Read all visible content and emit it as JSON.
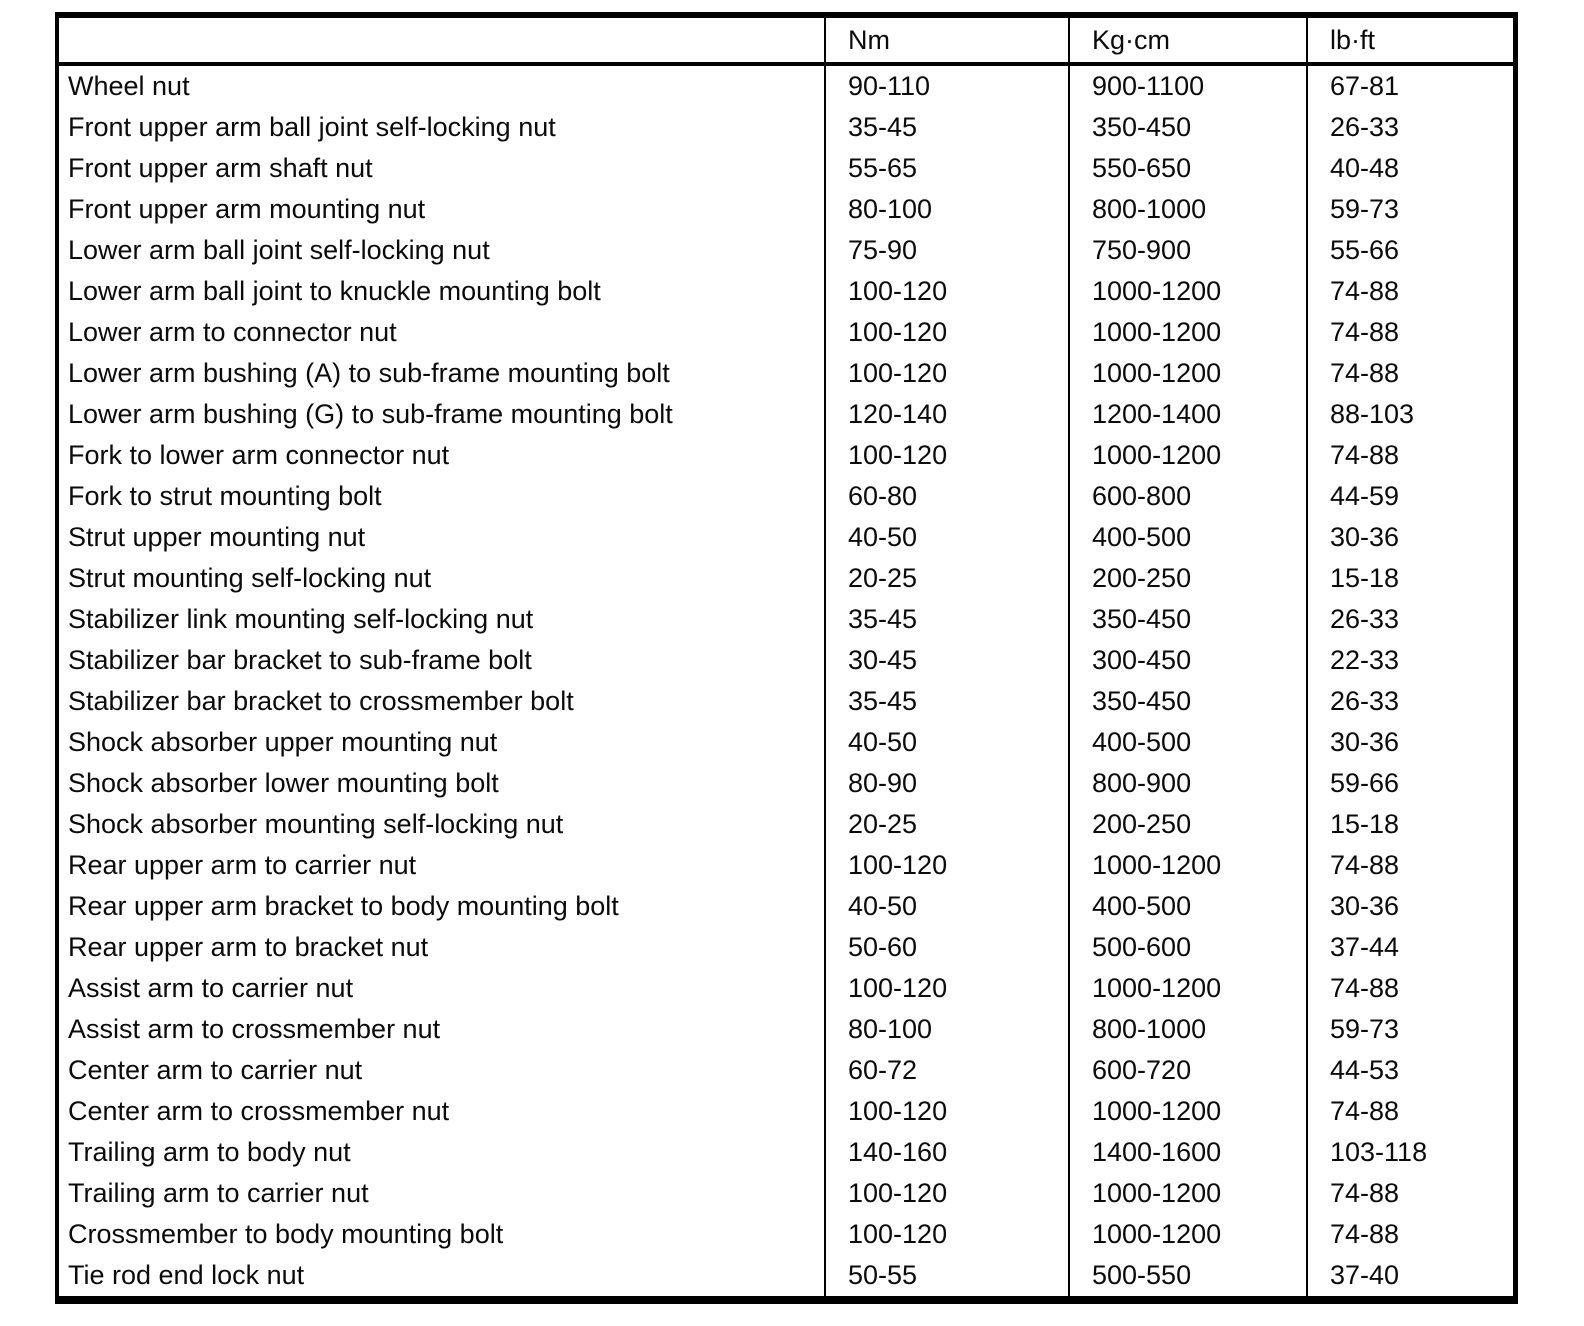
{
  "table": {
    "column_headers": {
      "label": "",
      "nm": "Nm",
      "kgcm": "Kg·cm",
      "lbft": "lb·ft"
    },
    "rows": [
      {
        "label": "Wheel nut",
        "nm": "90-110",
        "kgcm": "900-1100",
        "lbft": "67-81"
      },
      {
        "label": "Front upper arm ball joint self-locking nut",
        "nm": "35-45",
        "kgcm": "350-450",
        "lbft": "26-33"
      },
      {
        "label": "Front upper arm shaft nut",
        "nm": "55-65",
        "kgcm": "550-650",
        "lbft": "40-48"
      },
      {
        "label": "Front upper arm mounting nut",
        "nm": "80-100",
        "kgcm": "800-1000",
        "lbft": "59-73"
      },
      {
        "label": "Lower arm ball joint self-locking nut",
        "nm": "75-90",
        "kgcm": "750-900",
        "lbft": "55-66"
      },
      {
        "label": "Lower arm ball joint to knuckle mounting bolt",
        "nm": "100-120",
        "kgcm": "1000-1200",
        "lbft": "74-88"
      },
      {
        "label": "Lower arm to connector nut",
        "nm": "100-120",
        "kgcm": "1000-1200",
        "lbft": "74-88"
      },
      {
        "label": "Lower arm bushing (A) to sub-frame mounting bolt",
        "nm": "100-120",
        "kgcm": "1000-1200",
        "lbft": "74-88"
      },
      {
        "label": "Lower arm bushing (G) to sub-frame mounting bolt",
        "nm": "120-140",
        "kgcm": "1200-1400",
        "lbft": "88-103"
      },
      {
        "label": "Fork to lower arm connector nut",
        "nm": "100-120",
        "kgcm": "1000-1200",
        "lbft": "74-88"
      },
      {
        "label": "Fork to strut mounting bolt",
        "nm": "60-80",
        "kgcm": "600-800",
        "lbft": "44-59"
      },
      {
        "label": "Strut upper mounting nut",
        "nm": "40-50",
        "kgcm": "400-500",
        "lbft": "30-36"
      },
      {
        "label": "Strut mounting self-locking nut",
        "nm": "20-25",
        "kgcm": "200-250",
        "lbft": "15-18"
      },
      {
        "label": "Stabilizer link mounting self-locking nut",
        "nm": "35-45",
        "kgcm": "350-450",
        "lbft": "26-33"
      },
      {
        "label": "Stabilizer bar bracket to sub-frame bolt",
        "nm": "30-45",
        "kgcm": "300-450",
        "lbft": "22-33"
      },
      {
        "label": "Stabilizer bar bracket to crossmember bolt",
        "nm": "35-45",
        "kgcm": "350-450",
        "lbft": "26-33"
      },
      {
        "label": "Shock absorber upper mounting nut",
        "nm": "40-50",
        "kgcm": "400-500",
        "lbft": "30-36"
      },
      {
        "label": "Shock absorber lower mounting bolt",
        "nm": "80-90",
        "kgcm": "800-900",
        "lbft": "59-66"
      },
      {
        "label": "Shock absorber mounting self-locking nut",
        "nm": "20-25",
        "kgcm": "200-250",
        "lbft": "15-18"
      },
      {
        "label": "Rear upper arm to carrier nut",
        "nm": "100-120",
        "kgcm": "1000-1200",
        "lbft": "74-88"
      },
      {
        "label": "Rear upper arm bracket to body mounting bolt",
        "nm": "40-50",
        "kgcm": "400-500",
        "lbft": "30-36"
      },
      {
        "label": "Rear upper arm to bracket nut",
        "nm": "50-60",
        "kgcm": "500-600",
        "lbft": "37-44"
      },
      {
        "label": "Assist arm to carrier nut",
        "nm": "100-120",
        "kgcm": "1000-1200",
        "lbft": "74-88"
      },
      {
        "label": "Assist arm to crossmember nut",
        "nm": "80-100",
        "kgcm": "800-1000",
        "lbft": "59-73"
      },
      {
        "label": "Center arm to carrier nut",
        "nm": "60-72",
        "kgcm": "600-720",
        "lbft": "44-53"
      },
      {
        "label": "Center arm to crossmember nut",
        "nm": "100-120",
        "kgcm": "1000-1200",
        "lbft": "74-88"
      },
      {
        "label": "Trailing arm to body nut",
        "nm": "140-160",
        "kgcm": "1400-1600",
        "lbft": "103-118"
      },
      {
        "label": "Trailing arm to carrier nut",
        "nm": "100-120",
        "kgcm": "1000-1200",
        "lbft": "74-88"
      },
      {
        "label": "Crossmember to body mounting bolt",
        "nm": "100-120",
        "kgcm": "1000-1200",
        "lbft": "74-88"
      },
      {
        "label": "Tie rod end lock nut",
        "nm": "50-55",
        "kgcm": "500-550",
        "lbft": "37-40"
      }
    ]
  }
}
